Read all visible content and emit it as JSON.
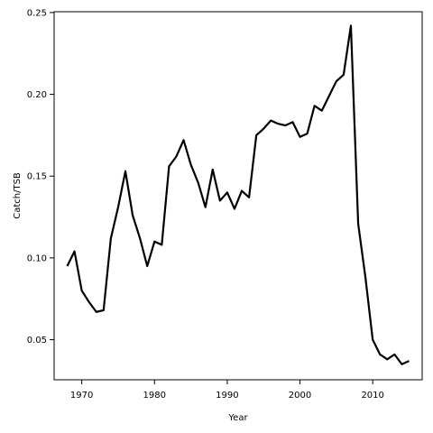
{
  "chart_data": {
    "type": "line",
    "title": "",
    "xlabel": "Year",
    "ylabel": "Catch/TSB",
    "xlim": [
      1966.2,
      2016.8
    ],
    "ylim": [
      0.0255,
      0.2505
    ],
    "xticks": [
      1970,
      1980,
      1990,
      2000,
      2010
    ],
    "yticks": [
      0.05,
      0.1,
      0.15,
      0.2,
      0.25
    ],
    "ytick_labels": [
      "0.05",
      "0.10",
      "0.15",
      "0.20",
      "0.25"
    ],
    "grid": false,
    "legend": "none",
    "colors": {
      "line": "#000000",
      "frame": "#000000"
    },
    "series": [
      {
        "x": [
          1968,
          1969,
          1970,
          1971,
          1972,
          1973,
          1974,
          1975,
          1976,
          1977,
          1978,
          1979,
          1980,
          1981,
          1982,
          1983,
          1984,
          1985,
          1986,
          1987,
          1988,
          1989,
          1990,
          1991,
          1992,
          1993,
          1994,
          1995,
          1996,
          1997,
          1998,
          1999,
          2000,
          2001,
          2002,
          2003,
          2004,
          2005,
          2006,
          2007,
          2008,
          2009,
          2010,
          2011,
          2012,
          2013,
          2014,
          2015
        ],
        "values": [
          0.095,
          0.104,
          0.08,
          0.073,
          0.067,
          0.068,
          0.112,
          0.131,
          0.153,
          0.126,
          0.112,
          0.095,
          0.11,
          0.108,
          0.156,
          0.162,
          0.172,
          0.157,
          0.146,
          0.131,
          0.154,
          0.135,
          0.14,
          0.13,
          0.141,
          0.137,
          0.175,
          0.179,
          0.184,
          0.182,
          0.181,
          0.183,
          0.174,
          0.176,
          0.193,
          0.19,
          0.199,
          0.208,
          0.212,
          0.242,
          0.121,
          0.088,
          0.05,
          0.041,
          0.038,
          0.041,
          0.035,
          0.037
        ]
      }
    ]
  }
}
